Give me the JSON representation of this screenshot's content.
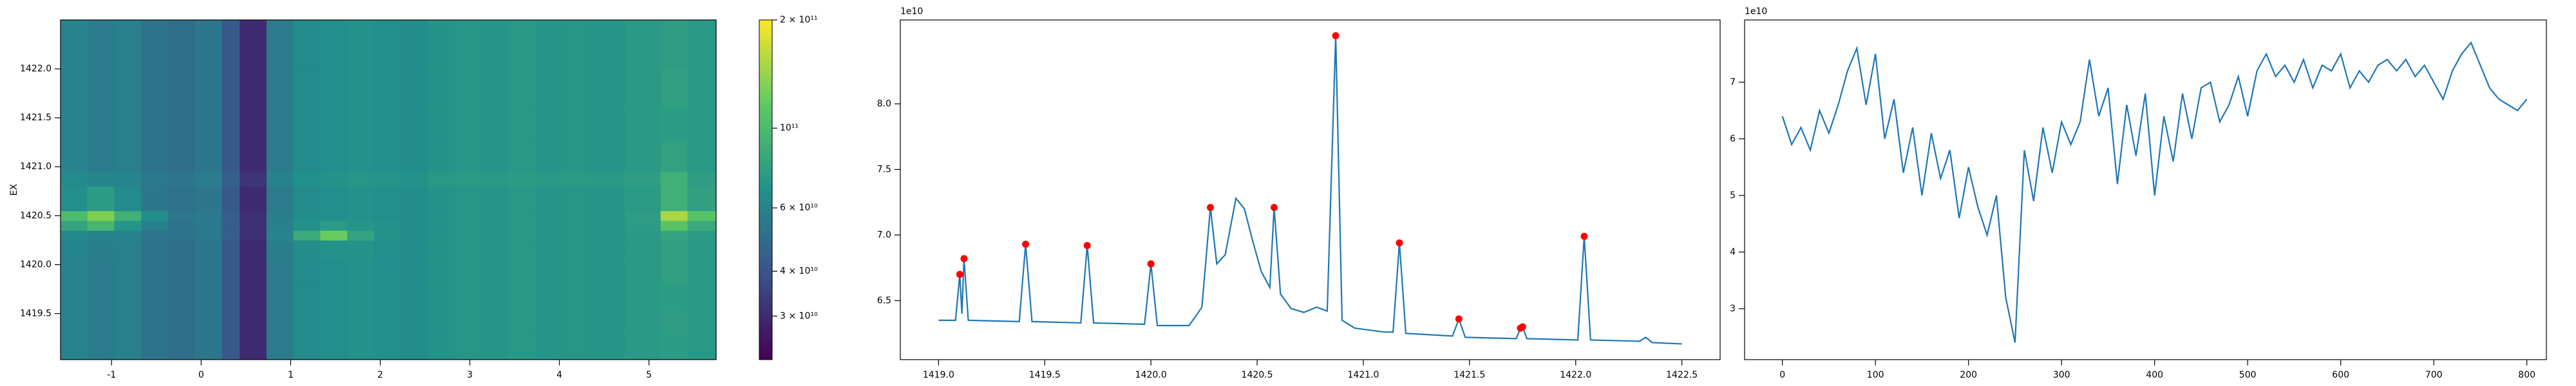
{
  "chart_data": [
    {
      "type": "heatmap",
      "ylabel": "EX",
      "xlim": [
        -1.57,
        5.75
      ],
      "ylim": [
        1419.03,
        1422.5
      ],
      "xticks": [
        -1,
        0,
        1,
        2,
        3,
        4,
        5
      ],
      "yticks": [
        {
          "value": 1419.5,
          "label": "1419.5"
        },
        {
          "value": 1420.0,
          "label": "1420.0"
        },
        {
          "value": 1420.5,
          "label": "1420.5"
        },
        {
          "value": 1421.0,
          "label": "1421.0"
        },
        {
          "value": 1421.5,
          "label": "1421.5"
        },
        {
          "value": 1422.0,
          "label": "1422.0"
        }
      ],
      "x_edges": [
        -1.57,
        -1.27,
        -0.97,
        -0.67,
        -0.37,
        -0.07,
        0.23,
        0.43,
        0.73,
        1.03,
        1.33,
        1.63,
        1.93,
        2.23,
        2.53,
        2.83,
        3.13,
        3.43,
        3.73,
        4.03,
        4.33,
        4.73,
        5.13,
        5.43,
        5.75
      ],
      "y_edges": [
        1419.03,
        1419.3,
        1419.55,
        1419.8,
        1420.05,
        1420.25,
        1420.35,
        1420.45,
        1420.55,
        1420.8,
        1420.95,
        1421.25,
        1421.6,
        1422.0,
        1422.5
      ],
      "colorscale": "viridis",
      "log_color": true,
      "clim": [
        22700000000.0,
        200000000000.0
      ],
      "cticks": [
        {
          "value": 200000000000.0,
          "label": "2 × 10¹¹"
        },
        {
          "value": 100000000000.0,
          "label": "10¹¹"
        },
        {
          "value": 60000000000.0,
          "label": "6 × 10¹⁰"
        },
        {
          "value": 40000000000.0,
          "label": "4 × 10¹⁰"
        },
        {
          "value": 30000000000.0,
          "label": "3 × 10¹⁰"
        }
      ],
      "z": [
        [
          60000000000.0,
          56000000000.0,
          58000000000.0,
          52000000000.0,
          50000000000.0,
          54000000000.0,
          42000000000.0,
          30000000000.0,
          56000000000.0,
          64000000000.0,
          66000000000.0,
          68000000000.0,
          67000000000.0,
          65000000000.0,
          69000000000.0,
          71000000000.0,
          70000000000.0,
          72000000000.0,
          70000000000.0,
          71000000000.0,
          70000000000.0,
          73000000000.0,
          75000000000.0,
          72000000000.0
        ],
        [
          60000000000.0,
          56000000000.0,
          58000000000.0,
          52000000000.0,
          50000000000.0,
          54000000000.0,
          42000000000.0,
          30000000000.0,
          56000000000.0,
          64000000000.0,
          66000000000.0,
          68000000000.0,
          67000000000.0,
          65000000000.0,
          69000000000.0,
          71000000000.0,
          70000000000.0,
          72000000000.0,
          70000000000.0,
          71000000000.0,
          70000000000.0,
          73000000000.0,
          76000000000.0,
          72000000000.0
        ],
        [
          60000000000.0,
          56000000000.0,
          58000000000.0,
          52000000000.0,
          50000000000.0,
          54000000000.0,
          42000000000.0,
          30000000000.0,
          56000000000.0,
          64000000000.0,
          66000000000.0,
          68000000000.0,
          67000000000.0,
          65000000000.0,
          69000000000.0,
          71000000000.0,
          70000000000.0,
          72000000000.0,
          70000000000.0,
          71000000000.0,
          70000000000.0,
          73000000000.0,
          75000000000.0,
          72000000000.0
        ],
        [
          60000000000.0,
          56000000000.0,
          58000000000.0,
          52000000000.0,
          50000000000.0,
          54000000000.0,
          42000000000.0,
          30000000000.0,
          56000000000.0,
          64000000000.0,
          66000000000.0,
          68000000000.0,
          67000000000.0,
          65000000000.0,
          69000000000.0,
          71000000000.0,
          70000000000.0,
          72000000000.0,
          70000000000.0,
          71000000000.0,
          70000000000.0,
          73000000000.0,
          77000000000.0,
          72000000000.0
        ],
        [
          61000000000.0,
          57000000000.0,
          58000000000.0,
          52000000000.0,
          50000000000.0,
          54000000000.0,
          42000000000.0,
          30000000000.0,
          57000000000.0,
          65000000000.0,
          68000000000.0,
          69000000000.0,
          67000000000.0,
          65000000000.0,
          69000000000.0,
          71000000000.0,
          70000000000.0,
          72000000000.0,
          70000000000.0,
          71000000000.0,
          70000000000.0,
          73000000000.0,
          78000000000.0,
          73000000000.0
        ],
        [
          63000000000.0,
          59000000000.0,
          59000000000.0,
          53000000000.0,
          51000000000.0,
          55000000000.0,
          43000000000.0,
          31000000000.0,
          60000000000.0,
          85000000000.0,
          120000000000.0,
          80000000000.0,
          69000000000.0,
          65000000000.0,
          69000000000.0,
          71000000000.0,
          70000000000.0,
          72000000000.0,
          70000000000.0,
          71000000000.0,
          70000000000.0,
          73000000000.0,
          80000000000.0,
          74000000000.0
        ],
        [
          80000000000.0,
          95000000000.0,
          70000000000.0,
          58000000000.0,
          52000000000.0,
          55000000000.0,
          43000000000.0,
          31000000000.0,
          58000000000.0,
          68000000000.0,
          74000000000.0,
          70000000000.0,
          68000000000.0,
          65000000000.0,
          69000000000.0,
          71000000000.0,
          70000000000.0,
          72000000000.0,
          70000000000.0,
          71000000000.0,
          70000000000.0,
          75000000000.0,
          110000000000.0,
          85000000000.0
        ],
        [
          100000000000.0,
          130000000000.0,
          90000000000.0,
          65000000000.0,
          54000000000.0,
          55000000000.0,
          43000000000.0,
          31000000000.0,
          57000000000.0,
          65000000000.0,
          67000000000.0,
          68000000000.0,
          67000000000.0,
          65000000000.0,
          69000000000.0,
          71000000000.0,
          70000000000.0,
          72000000000.0,
          70000000000.0,
          71000000000.0,
          71000000000.0,
          76000000000.0,
          150000000000.0,
          110000000000.0
        ],
        [
          66000000000.0,
          75000000000.0,
          64000000000.0,
          54000000000.0,
          51000000000.0,
          54000000000.0,
          42000000000.0,
          30000000000.0,
          56000000000.0,
          64000000000.0,
          66000000000.0,
          68000000000.0,
          67000000000.0,
          65000000000.0,
          69000000000.0,
          71000000000.0,
          70000000000.0,
          72000000000.0,
          70000000000.0,
          71000000000.0,
          70000000000.0,
          74000000000.0,
          90000000000.0,
          78000000000.0
        ],
        [
          64000000000.0,
          62000000000.0,
          61000000000.0,
          55000000000.0,
          53000000000.0,
          56000000000.0,
          44000000000.0,
          32000000000.0,
          59000000000.0,
          67000000000.0,
          69000000000.0,
          71000000000.0,
          70000000000.0,
          68000000000.0,
          72000000000.0,
          74000000000.0,
          73000000000.0,
          75000000000.0,
          73000000000.0,
          74000000000.0,
          73000000000.0,
          76000000000.0,
          90000000000.0,
          76000000000.0
        ],
        [
          60000000000.0,
          56000000000.0,
          58000000000.0,
          52000000000.0,
          50000000000.0,
          54000000000.0,
          42000000000.0,
          30000000000.0,
          56000000000.0,
          64000000000.0,
          66000000000.0,
          68000000000.0,
          67000000000.0,
          65000000000.0,
          69000000000.0,
          71000000000.0,
          70000000000.0,
          72000000000.0,
          70000000000.0,
          71000000000.0,
          70000000000.0,
          73000000000.0,
          79000000000.0,
          72000000000.0
        ],
        [
          60000000000.0,
          56000000000.0,
          58000000000.0,
          52000000000.0,
          50000000000.0,
          54000000000.0,
          42000000000.0,
          30000000000.0,
          56000000000.0,
          64000000000.0,
          66000000000.0,
          68000000000.0,
          67000000000.0,
          65000000000.0,
          69000000000.0,
          71000000000.0,
          70000000000.0,
          72000000000.0,
          70000000000.0,
          71000000000.0,
          70000000000.0,
          73000000000.0,
          75000000000.0,
          72000000000.0
        ],
        [
          60000000000.0,
          56000000000.0,
          58000000000.0,
          52000000000.0,
          50000000000.0,
          54000000000.0,
          42000000000.0,
          30000000000.0,
          56000000000.0,
          64000000000.0,
          66000000000.0,
          68000000000.0,
          67000000000.0,
          65000000000.0,
          69000000000.0,
          71000000000.0,
          70000000000.0,
          72000000000.0,
          70000000000.0,
          71000000000.0,
          70000000000.0,
          73000000000.0,
          77000000000.0,
          72000000000.0
        ],
        [
          60000000000.0,
          56000000000.0,
          58000000000.0,
          52000000000.0,
          50000000000.0,
          54000000000.0,
          42000000000.0,
          30000000000.0,
          56000000000.0,
          64000000000.0,
          66000000000.0,
          68000000000.0,
          67000000000.0,
          65000000000.0,
          69000000000.0,
          71000000000.0,
          70000000000.0,
          72000000000.0,
          70000000000.0,
          71000000000.0,
          70000000000.0,
          73000000000.0,
          76000000000.0,
          72000000000.0
        ]
      ]
    },
    {
      "type": "line",
      "offset_text": "1e10",
      "xlim": [
        1418.82,
        1422.68
      ],
      "ylim": [
        6.05,
        8.64
      ],
      "xticks": [
        {
          "value": 1419.0,
          "label": "1419.0"
        },
        1419.5,
        {
          "value": 1420.0,
          "label": "1420.0"
        },
        1420.5,
        {
          "value": 1421.0,
          "label": "1421.0"
        },
        1421.5,
        {
          "value": 1422.0,
          "label": "1422.0"
        },
        1422.5
      ],
      "yticks": [
        6.5,
        {
          "value": 7.0,
          "label": "7.0"
        },
        7.5,
        {
          "value": 8.0,
          "label": "8.0"
        }
      ],
      "series": [
        {
          "color": "#1f77b4",
          "x": [
            1419.0,
            1419.08,
            1419.1,
            1419.11,
            1419.12,
            1419.14,
            1419.38,
            1419.41,
            1419.44,
            1419.67,
            1419.7,
            1419.73,
            1419.97,
            1420.0,
            1420.03,
            1420.18,
            1420.24,
            1420.28,
            1420.31,
            1420.35,
            1420.4,
            1420.44,
            1420.48,
            1420.52,
            1420.56,
            1420.58,
            1420.61,
            1420.66,
            1420.72,
            1420.78,
            1420.83,
            1420.87,
            1420.9,
            1420.96,
            1421.1,
            1421.14,
            1421.17,
            1421.2,
            1421.42,
            1421.45,
            1421.48,
            1421.72,
            1421.74,
            1421.75,
            1421.77,
            1422.01,
            1422.04,
            1422.07,
            1422.3,
            1422.33,
            1422.36,
            1422.5
          ],
          "values": [
            6.35,
            6.35,
            6.7,
            6.4,
            6.82,
            6.35,
            6.34,
            6.93,
            6.34,
            6.33,
            6.92,
            6.33,
            6.32,
            6.78,
            6.31,
            6.31,
            6.45,
            7.21,
            6.78,
            6.85,
            7.28,
            7.2,
            6.95,
            6.72,
            6.6,
            7.21,
            6.55,
            6.44,
            6.41,
            6.45,
            6.42,
            8.52,
            6.35,
            6.29,
            6.26,
            6.26,
            6.94,
            6.25,
            6.23,
            6.36,
            6.22,
            6.21,
            6.29,
            6.3,
            6.21,
            6.2,
            6.99,
            6.2,
            6.19,
            6.22,
            6.18,
            6.17
          ]
        }
      ],
      "markers": {
        "color": "#ff0000",
        "x": [
          1419.1,
          1419.12,
          1419.41,
          1419.7,
          1420.0,
          1420.28,
          1420.58,
          1420.87,
          1421.17,
          1421.45,
          1421.74,
          1421.75,
          1422.04
        ],
        "values": [
          6.7,
          6.82,
          6.93,
          6.92,
          6.78,
          7.21,
          7.21,
          8.52,
          6.94,
          6.36,
          6.29,
          6.3,
          6.99
        ]
      }
    },
    {
      "type": "line",
      "offset_text": "1e10",
      "xlim": [
        -40.6,
        821
      ],
      "ylim": [
        2.1,
        8.1
      ],
      "xticks": [
        0,
        100,
        200,
        300,
        400,
        500,
        600,
        700,
        800
      ],
      "yticks": [
        3,
        4,
        5,
        6,
        7
      ],
      "series": [
        {
          "color": "#1f77b4",
          "x": [
            0,
            10,
            20,
            30,
            40,
            50,
            60,
            70,
            80,
            90,
            100,
            110,
            120,
            130,
            140,
            150,
            160,
            170,
            180,
            190,
            200,
            210,
            220,
            230,
            240,
            250,
            260,
            270,
            280,
            290,
            300,
            310,
            320,
            330,
            340,
            350,
            360,
            370,
            380,
            390,
            400,
            410,
            420,
            430,
            440,
            450,
            460,
            470,
            480,
            490,
            500,
            510,
            520,
            530,
            540,
            550,
            560,
            570,
            580,
            590,
            600,
            610,
            620,
            630,
            640,
            650,
            660,
            670,
            680,
            690,
            700,
            710,
            720,
            730,
            740,
            750,
            760,
            770,
            780,
            790,
            800
          ],
          "values": [
            6.4,
            5.9,
            6.2,
            5.8,
            6.5,
            6.1,
            6.6,
            7.2,
            7.6,
            6.6,
            7.5,
            6.0,
            6.7,
            5.4,
            6.2,
            5.0,
            6.1,
            5.3,
            5.8,
            4.6,
            5.5,
            4.8,
            4.3,
            5.0,
            3.2,
            2.4,
            5.8,
            4.9,
            6.2,
            5.4,
            6.3,
            5.9,
            6.3,
            7.4,
            6.4,
            6.9,
            5.2,
            6.6,
            5.7,
            6.8,
            5.0,
            6.4,
            5.6,
            6.8,
            6.0,
            6.9,
            7.0,
            6.3,
            6.6,
            7.1,
            6.4,
            7.2,
            7.5,
            7.1,
            7.3,
            7.0,
            7.4,
            6.9,
            7.3,
            7.2,
            7.5,
            6.9,
            7.2,
            7.0,
            7.3,
            7.4,
            7.2,
            7.4,
            7.1,
            7.3,
            7.0,
            6.7,
            7.2,
            7.5,
            7.7,
            7.3,
            6.9,
            6.7,
            6.6,
            6.5,
            6.7
          ]
        }
      ]
    }
  ]
}
